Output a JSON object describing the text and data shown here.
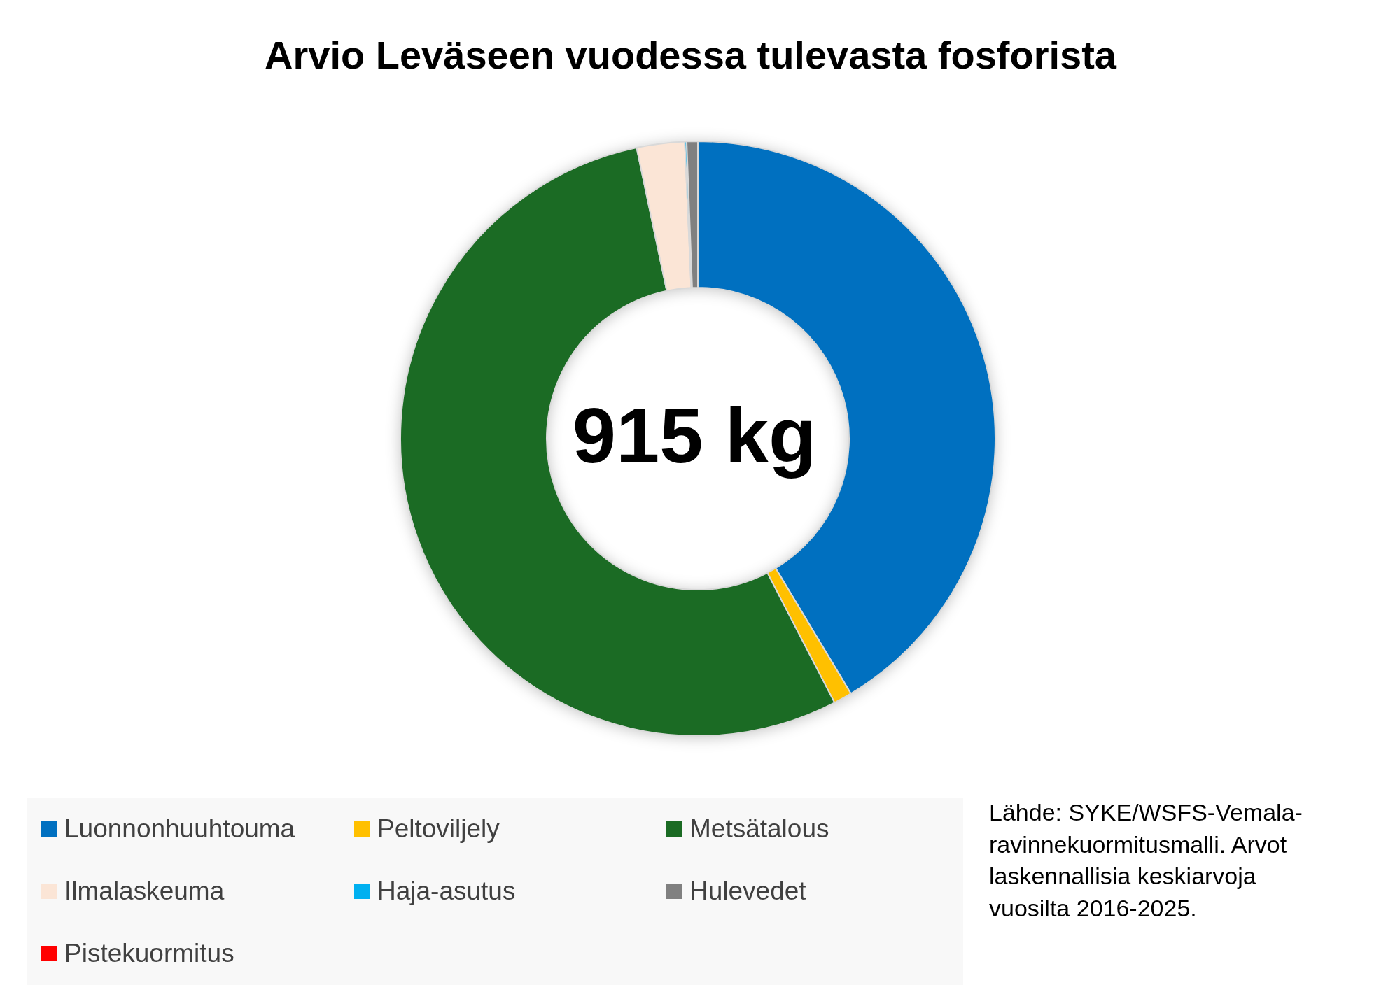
{
  "chart_data": {
    "type": "donut",
    "title": "Arvio Leväseen vuodessa tulevasta fosforista",
    "categories": [
      "Luonnonhuuhtouma",
      "Peltoviljely",
      "Metsätalous",
      "Ilmalaskeuma",
      "Haja-asutus",
      "Hulevedet",
      "Pistekuormitus"
    ],
    "values": [
      41.4,
      1.0,
      54.3,
      2.6,
      0.1,
      0.6,
      0
    ],
    "colors": [
      "#0070c0",
      "#ffc000",
      "#1b6b24",
      "#fbe5d6",
      "#00b0f0",
      "#808080",
      "#ff0000"
    ],
    "legend": "bottom",
    "annotations": [
      "915 kg",
      "Lähde: SYKE/WSFS-Vemala-ravinnekuormitusmalli. Arvot laskennallisia keskiarvoja vuosilta 2016-2025."
    ]
  }
}
